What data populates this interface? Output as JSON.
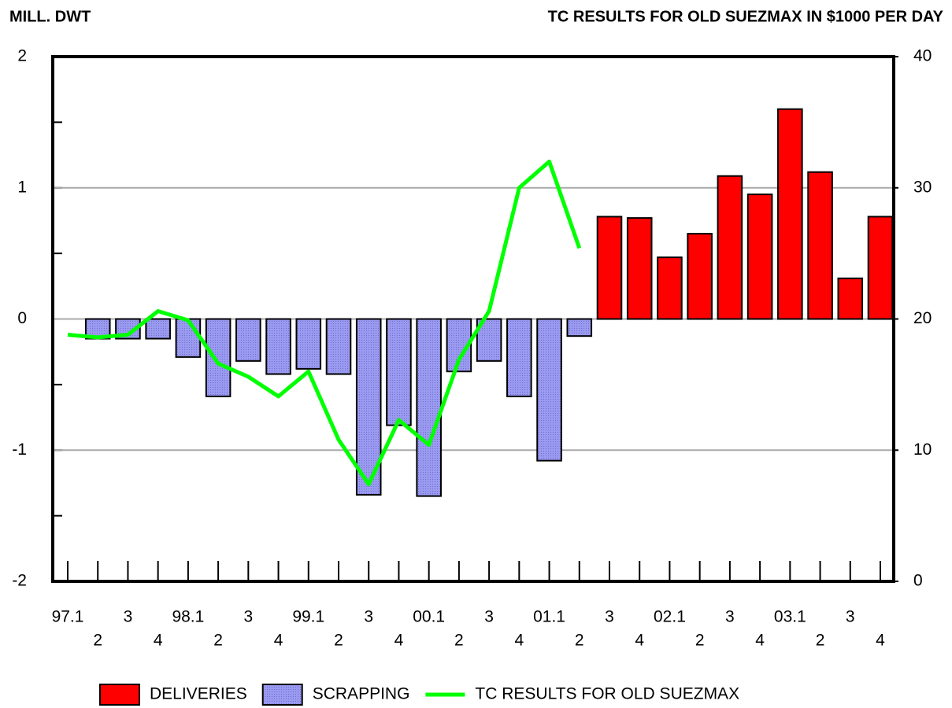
{
  "chart_data": {
    "type": "bar-line",
    "left_axis_title": "MILL. DWT",
    "right_axis_title": "TC RESULTS FOR OLD SUEZMAX IN $1000 PER DAY",
    "categories": [
      "97.1",
      "2",
      "3",
      "4",
      "98.1",
      "2",
      "3",
      "4",
      "99.1",
      "2",
      "3",
      "4",
      "00.1",
      "2",
      "3",
      "4",
      "01.1",
      "2",
      "3",
      "4",
      "02.1",
      "2",
      "3",
      "4",
      "03.1",
      "2",
      "3",
      "4"
    ],
    "series": [
      {
        "name": "DELIVERIES",
        "type": "bar",
        "color": "#ff0000",
        "values": [
          null,
          null,
          null,
          null,
          null,
          null,
          null,
          null,
          null,
          null,
          null,
          null,
          null,
          null,
          null,
          null,
          null,
          null,
          0.78,
          0.77,
          0.47,
          0.65,
          1.09,
          0.95,
          1.6,
          1.12,
          0.31,
          0.78
        ]
      },
      {
        "name": "SCRAPPING",
        "type": "bar",
        "color": "#9a9af0",
        "values": [
          null,
          -0.15,
          -0.15,
          -0.15,
          -0.29,
          -0.59,
          -0.32,
          -0.42,
          -0.38,
          -0.42,
          -1.34,
          -0.81,
          -1.35,
          -0.4,
          -0.32,
          -0.59,
          -1.08,
          -0.13,
          null,
          null,
          null,
          null,
          null,
          null,
          null,
          null,
          null,
          null
        ]
      },
      {
        "name": "TC RESULTS FOR OLD SUEZMAX",
        "type": "line",
        "axis": "y2",
        "color": "#00ff00",
        "values": [
          18.8,
          18.6,
          18.8,
          20.6,
          19.9,
          16.6,
          15.6,
          14.1,
          16.0,
          10.8,
          7.4,
          12.3,
          10.4,
          16.9,
          20.6,
          30.0,
          32.0,
          25.4,
          null,
          null,
          null,
          null,
          null,
          null,
          null,
          null,
          null,
          null
        ]
      }
    ],
    "ylim": [
      -2,
      2
    ],
    "yticks": [
      -2,
      -1,
      0,
      1,
      2
    ],
    "yminor": [
      -1.5,
      -0.5,
      0.5,
      1.5
    ],
    "y2lim": [
      0,
      40
    ],
    "y2ticks": [
      0,
      10,
      20,
      30,
      40
    ],
    "grid": true
  }
}
